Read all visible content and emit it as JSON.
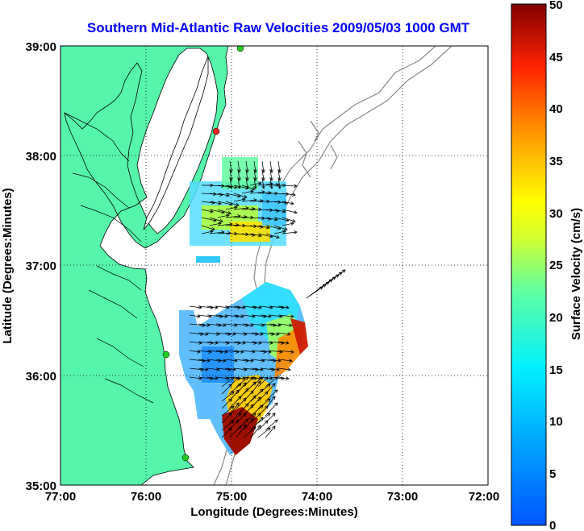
{
  "title": "Southern Mid-Atlantic Raw Velocities 2009/05/03 1000 GMT",
  "xlabel": "Longitude (Degrees:Minutes)",
  "ylabel": "Latitude (Degrees:Minutes)",
  "x_ticks": [
    "77:00",
    "76:00",
    "75:00",
    "74:00",
    "73:00",
    "72:00"
  ],
  "y_ticks": [
    "39:00",
    "38:00",
    "37:00",
    "36:00",
    "35:00"
  ],
  "colorbar": {
    "label": "Surface Velocity (cm/s)",
    "ticks": [
      "50",
      "45",
      "40",
      "35",
      "30",
      "25",
      "20",
      "15",
      "10",
      "5",
      "0"
    ],
    "range": [
      0,
      50
    ],
    "colormap": "jet"
  },
  "map": {
    "lon_range": [
      -77,
      -72
    ],
    "lat_range": [
      35,
      39
    ],
    "land_color": "#55f5aa",
    "water_color": "#ffffff",
    "grid": "dotted",
    "station_markers": [
      {
        "name": "station-1",
        "lon": -74.95,
        "lat": 38.98,
        "color": "#22cc22"
      },
      {
        "name": "station-2",
        "lon": -75.15,
        "lat": 38.28,
        "color": "#ee2222"
      },
      {
        "name": "station-3",
        "lon": -75.7,
        "lat": 36.2,
        "color": "#22cc22"
      },
      {
        "name": "station-4",
        "lon": -75.5,
        "lat": 35.32,
        "color": "#22cc22"
      }
    ]
  },
  "colors": {
    "low": "#1060ff",
    "mid": "#00ffff",
    "high": "#ffff00",
    "max": "#800000"
  }
}
